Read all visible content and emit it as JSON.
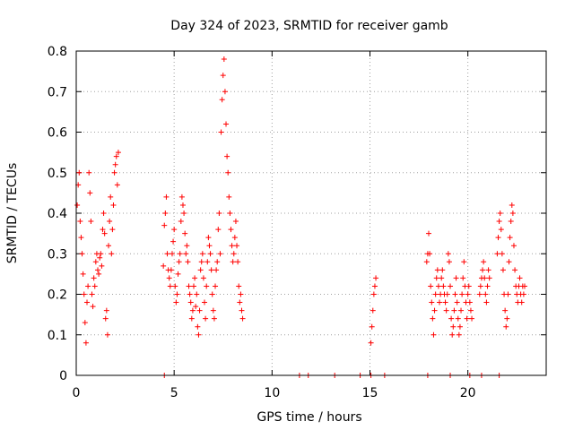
{
  "chart_data": {
    "type": "scatter",
    "title": "Day 324 of 2023, SRMTID for receiver gamb",
    "xlabel": "GPS time / hours",
    "ylabel": "SRMTID / TECUs",
    "xlim": [
      0,
      24
    ],
    "ylim": [
      0,
      0.8
    ],
    "xticks": [
      0,
      5,
      10,
      15,
      20
    ],
    "xtick_labels": [
      "0",
      "5",
      "10",
      "15",
      "20"
    ],
    "yticks": [
      0,
      0.1,
      0.2,
      0.3,
      0.4,
      0.5,
      0.6,
      0.7,
      0.8
    ],
    "ytick_labels": [
      "0",
      "0.1",
      "0.2",
      "0.3",
      "0.4",
      "0.5",
      "0.6",
      "0.7",
      "0.8"
    ],
    "grid": true,
    "marker": "+",
    "color": "#ff0000",
    "series": [
      {
        "name": "SRMTID",
        "x": [
          0.05,
          0.1,
          0.15,
          0.2,
          0.25,
          0.3,
          0.35,
          0.4,
          0.45,
          0.5,
          0.55,
          0.6,
          0.65,
          0.7,
          0.75,
          0.8,
          0.85,
          0.9,
          0.95,
          1.0,
          1.05,
          1.1,
          1.15,
          1.2,
          1.25,
          1.3,
          1.35,
          1.4,
          1.45,
          1.5,
          1.55,
          1.6,
          1.65,
          1.7,
          1.75,
          1.8,
          1.85,
          1.9,
          1.95,
          2.0,
          2.05,
          2.1,
          2.15,
          4.45,
          4.5,
          4.55,
          4.6,
          4.65,
          4.7,
          4.75,
          4.8,
          4.85,
          4.9,
          4.95,
          5.0,
          5.05,
          5.1,
          5.15,
          5.2,
          5.25,
          5.3,
          5.35,
          5.4,
          5.45,
          5.5,
          5.55,
          5.6,
          5.65,
          5.7,
          5.75,
          5.8,
          5.85,
          5.9,
          5.95,
          6.0,
          6.05,
          6.1,
          6.15,
          6.2,
          6.25,
          6.3,
          6.35,
          6.4,
          6.45,
          6.5,
          6.55,
          6.6,
          6.65,
          6.7,
          6.75,
          6.8,
          6.85,
          6.9,
          6.95,
          7.0,
          7.05,
          7.1,
          7.15,
          7.2,
          7.25,
          7.3,
          7.35,
          7.4,
          7.45,
          7.5,
          7.55,
          7.6,
          7.65,
          7.7,
          7.75,
          7.8,
          7.85,
          7.9,
          7.95,
          8.0,
          8.05,
          8.1,
          8.15,
          8.2,
          8.25,
          8.3,
          8.35,
          8.4,
          8.45,
          8.5,
          15.05,
          15.1,
          15.15,
          15.2,
          15.25,
          15.3,
          17.9,
          17.95,
          18.0,
          18.05,
          18.1,
          18.15,
          18.2,
          18.25,
          18.3,
          18.35,
          18.4,
          18.45,
          18.5,
          18.55,
          18.6,
          18.65,
          18.7,
          18.75,
          18.8,
          18.85,
          18.9,
          18.95,
          19.0,
          19.05,
          19.1,
          19.15,
          19.2,
          19.25,
          19.3,
          19.35,
          19.4,
          19.45,
          19.5,
          19.55,
          19.6,
          19.65,
          19.7,
          19.75,
          19.8,
          19.85,
          19.9,
          19.95,
          20.0,
          20.05,
          20.1,
          20.15,
          20.2,
          20.6,
          20.65,
          20.7,
          20.75,
          20.8,
          20.85,
          20.9,
          20.95,
          21.0,
          21.05,
          21.1,
          21.5,
          21.55,
          21.6,
          21.65,
          21.7,
          21.75,
          21.8,
          21.85,
          21.9,
          21.95,
          22.0,
          22.05,
          22.1,
          22.15,
          22.2,
          22.25,
          22.3,
          22.35,
          22.4,
          22.45,
          22.5,
          22.55,
          22.6,
          22.65,
          22.7,
          22.75,
          22.8,
          22.85,
          22.9,
          4.5,
          11.4,
          11.85,
          13.2,
          14.5,
          15.05,
          15.75,
          17.95,
          19.1,
          20.1,
          20.7,
          21.6
        ],
        "y": [
          0.42,
          0.47,
          0.5,
          0.38,
          0.34,
          0.3,
          0.25,
          0.2,
          0.13,
          0.08,
          0.18,
          0.22,
          0.5,
          0.45,
          0.38,
          0.2,
          0.17,
          0.24,
          0.22,
          0.28,
          0.3,
          0.26,
          0.25,
          0.29,
          0.3,
          0.27,
          0.36,
          0.4,
          0.35,
          0.14,
          0.16,
          0.1,
          0.32,
          0.38,
          0.44,
          0.3,
          0.36,
          0.42,
          0.5,
          0.52,
          0.54,
          0.47,
          0.55,
          0.27,
          0.37,
          0.4,
          0.44,
          0.3,
          0.26,
          0.24,
          0.22,
          0.26,
          0.3,
          0.33,
          0.36,
          0.22,
          0.18,
          0.2,
          0.25,
          0.28,
          0.3,
          0.38,
          0.44,
          0.42,
          0.4,
          0.35,
          0.3,
          0.32,
          0.28,
          0.22,
          0.2,
          0.18,
          0.14,
          0.16,
          0.22,
          0.24,
          0.17,
          0.2,
          0.12,
          0.1,
          0.16,
          0.26,
          0.28,
          0.3,
          0.24,
          0.18,
          0.14,
          0.22,
          0.28,
          0.34,
          0.32,
          0.3,
          0.26,
          0.2,
          0.16,
          0.14,
          0.22,
          0.26,
          0.28,
          0.36,
          0.4,
          0.3,
          0.6,
          0.68,
          0.74,
          0.78,
          0.7,
          0.62,
          0.54,
          0.5,
          0.44,
          0.4,
          0.36,
          0.32,
          0.28,
          0.3,
          0.34,
          0.38,
          0.32,
          0.28,
          0.22,
          0.18,
          0.2,
          0.16,
          0.14,
          0.08,
          0.12,
          0.16,
          0.2,
          0.22,
          0.24,
          0.28,
          0.3,
          0.35,
          0.3,
          0.22,
          0.18,
          0.14,
          0.1,
          0.16,
          0.2,
          0.24,
          0.26,
          0.22,
          0.18,
          0.2,
          0.24,
          0.26,
          0.22,
          0.2,
          0.18,
          0.16,
          0.2,
          0.3,
          0.28,
          0.22,
          0.14,
          0.1,
          0.12,
          0.16,
          0.2,
          0.24,
          0.18,
          0.14,
          0.1,
          0.12,
          0.16,
          0.2,
          0.24,
          0.28,
          0.22,
          0.18,
          0.14,
          0.2,
          0.22,
          0.18,
          0.16,
          0.14,
          0.2,
          0.22,
          0.24,
          0.26,
          0.28,
          0.24,
          0.2,
          0.18,
          0.22,
          0.26,
          0.24,
          0.3,
          0.34,
          0.38,
          0.4,
          0.36,
          0.3,
          0.26,
          0.2,
          0.16,
          0.12,
          0.14,
          0.2,
          0.28,
          0.34,
          0.38,
          0.42,
          0.4,
          0.32,
          0.26,
          0.22,
          0.2,
          0.18,
          0.22,
          0.24,
          0.2,
          0.18,
          0.22,
          0.2,
          0.22,
          0.0,
          0.0,
          0.0,
          0.0,
          0.0,
          0.0,
          0.0,
          0.0,
          0.0,
          0.0,
          0.0,
          0.0
        ]
      }
    ]
  }
}
